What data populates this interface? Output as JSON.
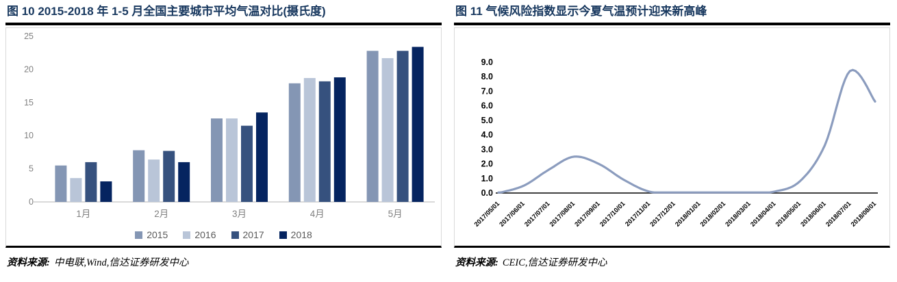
{
  "panels": [
    {
      "title": "图  10 2015-2018 年 1-5 月全国主要城市平均气温对比(摄氏度)",
      "source_label": "资料来源:",
      "source_text": "中电联,Wind,信达证券研发中心"
    },
    {
      "title": "图  11 气候风险指数显示今夏气温预计迎来新高峰",
      "source_label": "资料来源:",
      "source_text": "CEIC,信达证券研发中心"
    }
  ],
  "colors": {
    "title_navy": "#17375E",
    "axis_text_gray": "#808080",
    "legend_text_gray": "#595959",
    "baseline_gray": "#D9D9D9",
    "baseline_black": "#000000",
    "line_blue": "#8B9CBE"
  },
  "chart_data": [
    {
      "type": "bar",
      "title": "2015-2018 年 1-5 月全国主要城市平均气温对比(摄氏度)",
      "categories": [
        "1月",
        "2月",
        "3月",
        "4月",
        "5月"
      ],
      "series": [
        {
          "name": "2015",
          "color": "#8496B4",
          "values": [
            5.5,
            7.8,
            12.6,
            17.9,
            22.8
          ]
        },
        {
          "name": "2016",
          "color": "#B9C5D8",
          "values": [
            3.6,
            6.4,
            12.6,
            18.7,
            21.7
          ]
        },
        {
          "name": "2017",
          "color": "#36517E",
          "values": [
            6.0,
            7.7,
            11.5,
            18.2,
            22.8
          ]
        },
        {
          "name": "2018",
          "color": "#052460",
          "values": [
            3.1,
            6.0,
            13.5,
            18.8,
            23.4
          ]
        }
      ],
      "xlabel": "",
      "ylabel": "",
      "ylim": [
        0,
        25
      ],
      "ytick_step": 5,
      "grid": false,
      "legend_position": "bottom"
    },
    {
      "type": "line",
      "title": "气候风险指数显示今夏气温预计迎来新高峰",
      "x": [
        "2017/05/01",
        "2017/06/01",
        "2017/07/01",
        "2017/08/01",
        "2017/09/01",
        "2017/10/01",
        "2017/11/01",
        "2017/12/01",
        "2018/01/01",
        "2018/02/01",
        "2018/03/01",
        "2018/04/01",
        "2018/05/01",
        "2018/06/01",
        "2018/07/01",
        "2018/08/01"
      ],
      "values": [
        0.0,
        0.5,
        1.6,
        2.5,
        2.0,
        0.9,
        0.1,
        0.0,
        0.0,
        0.0,
        0.0,
        0.1,
        0.8,
        3.3,
        8.4,
        6.3
      ],
      "peak_value": 8.6,
      "xlabel": "",
      "ylabel": "",
      "ylim": [
        0,
        9
      ],
      "ytick_step": 1,
      "ytick_decimals": 1,
      "grid": false,
      "legend_position": "none",
      "line_color": "#8B9CBE"
    }
  ]
}
